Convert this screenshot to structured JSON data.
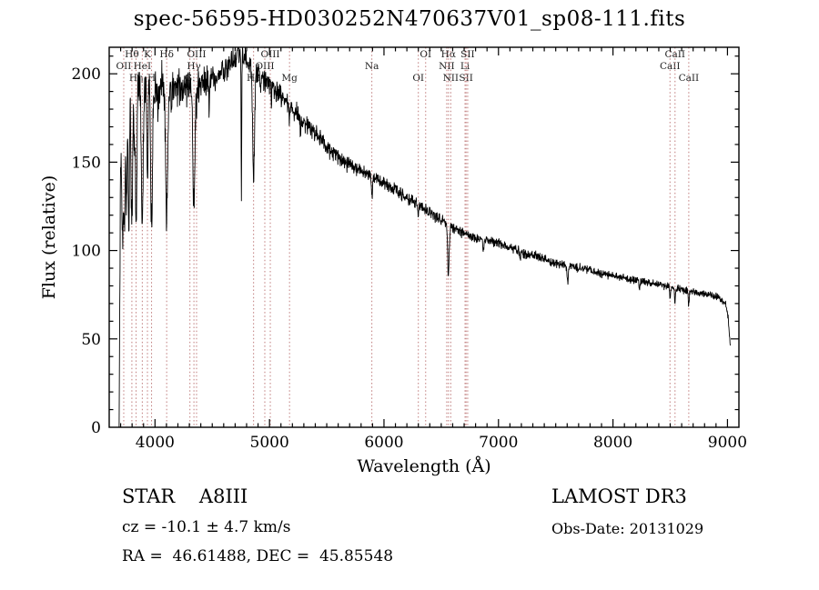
{
  "title": "spec-56595-HD030252N470637V01_sp08-111.fits",
  "chart_data": {
    "type": "line",
    "title": "spec-56595-HD030252N470637V01_sp08-111.fits",
    "xlabel": "Wavelength (Å)",
    "ylabel": "Flux (relative)",
    "xlim": [
      3600,
      9100
    ],
    "ylim": [
      0,
      215
    ],
    "xticks": [
      4000,
      5000,
      6000,
      7000,
      8000,
      9000
    ],
    "yticks": [
      0,
      50,
      100,
      150,
      200
    ],
    "x_minor_step": 100,
    "y_minor_step": 10,
    "grid": false,
    "line_color": "#000000",
    "marker_line_color": "#bf7b7b",
    "marker_label_color": "#222222",
    "series_name": "flux",
    "continuum_points": [
      [
        3687,
        0
      ],
      [
        3692,
        60
      ],
      [
        3697,
        130
      ],
      [
        3703,
        168
      ],
      [
        3710,
        182
      ],
      [
        3725,
        180
      ],
      [
        3745,
        188
      ],
      [
        3760,
        186
      ],
      [
        3780,
        188
      ],
      [
        3810,
        190
      ],
      [
        3840,
        192
      ],
      [
        3870,
        193
      ],
      [
        3905,
        194
      ],
      [
        3940,
        193
      ],
      [
        3975,
        193
      ],
      [
        4010,
        194
      ],
      [
        4060,
        195
      ],
      [
        4120,
        194
      ],
      [
        4180,
        193
      ],
      [
        4240,
        192
      ],
      [
        4300,
        193
      ],
      [
        4380,
        194
      ],
      [
        4440,
        196
      ],
      [
        4520,
        198
      ],
      [
        4600,
        202
      ],
      [
        4680,
        207
      ],
      [
        4740,
        211
      ],
      [
        4790,
        209
      ],
      [
        4840,
        205
      ],
      [
        4900,
        200
      ],
      [
        4960,
        196
      ],
      [
        5020,
        193
      ],
      [
        5080,
        189
      ],
      [
        5140,
        185
      ],
      [
        5200,
        181
      ],
      [
        5260,
        176
      ],
      [
        5320,
        171
      ],
      [
        5380,
        167
      ],
      [
        5440,
        163
      ],
      [
        5500,
        159
      ],
      [
        5560,
        155
      ],
      [
        5620,
        152
      ],
      [
        5680,
        149
      ],
      [
        5740,
        147
      ],
      [
        5800,
        145
      ],
      [
        5860,
        143
      ],
      [
        5920,
        141
      ],
      [
        5980,
        139
      ],
      [
        6040,
        136
      ],
      [
        6100,
        134
      ],
      [
        6160,
        131
      ],
      [
        6220,
        129
      ],
      [
        6280,
        127
      ],
      [
        6340,
        124
      ],
      [
        6400,
        122
      ],
      [
        6460,
        119
      ],
      [
        6520,
        117
      ],
      [
        6580,
        114
      ],
      [
        6640,
        112
      ],
      [
        6700,
        110
      ],
      [
        6760,
        108
      ],
      [
        6820,
        107
      ],
      [
        6880,
        106
      ],
      [
        6940,
        105
      ],
      [
        7000,
        104
      ],
      [
        7080,
        102
      ],
      [
        7160,
        100
      ],
      [
        7240,
        98
      ],
      [
        7320,
        97
      ],
      [
        7400,
        95
      ],
      [
        7480,
        93
      ],
      [
        7560,
        92
      ],
      [
        7640,
        91
      ],
      [
        7720,
        90
      ],
      [
        7800,
        89
      ],
      [
        7880,
        87
      ],
      [
        7960,
        86
      ],
      [
        8040,
        85
      ],
      [
        8120,
        84
      ],
      [
        8200,
        83
      ],
      [
        8280,
        82
      ],
      [
        8360,
        81
      ],
      [
        8440,
        80
      ],
      [
        8520,
        79
      ],
      [
        8600,
        78
      ],
      [
        8680,
        77
      ],
      [
        8760,
        76
      ],
      [
        8840,
        75
      ],
      [
        8900,
        74
      ],
      [
        8950,
        72
      ],
      [
        8985,
        69
      ],
      [
        9005,
        62
      ],
      [
        9020,
        50
      ],
      [
        9025,
        44
      ]
    ],
    "absorption_lines": [
      [
        3712,
        55,
        5
      ],
      [
        3722,
        58,
        5
      ],
      [
        3734,
        62,
        5
      ],
      [
        3750,
        64,
        5.5
      ],
      [
        3771,
        68,
        6
      ],
      [
        3798,
        72,
        6.5
      ],
      [
        3820,
        30,
        4
      ],
      [
        3835,
        76,
        7
      ],
      [
        3889,
        78,
        7.5
      ],
      [
        3934,
        55,
        5
      ],
      [
        3970,
        82,
        8
      ],
      [
        4026,
        18,
        4
      ],
      [
        4102,
        74,
        9
      ],
      [
        4144,
        14,
        4
      ],
      [
        4340,
        68,
        9
      ],
      [
        4363,
        10,
        4
      ],
      [
        4472,
        12,
        4
      ],
      [
        4755,
        82,
        2.6
      ],
      [
        4861,
        62,
        9
      ],
      [
        4922,
        10,
        3
      ],
      [
        5017,
        10,
        3
      ],
      [
        5175,
        11,
        5
      ],
      [
        5270,
        8,
        4
      ],
      [
        5894,
        13,
        5
      ],
      [
        6300,
        6,
        3
      ],
      [
        6563,
        28,
        7
      ],
      [
        6867,
        8,
        4
      ],
      [
        7190,
        5,
        4
      ],
      [
        7605,
        10,
        5
      ],
      [
        8230,
        5,
        4
      ],
      [
        8498,
        7,
        4
      ],
      [
        8542,
        9,
        4
      ],
      [
        8662,
        8,
        4
      ]
    ],
    "noise": {
      "seed": 20131029,
      "base": 2.3,
      "extra": 15,
      "decay": 1300
    },
    "sample": {
      "start": 3687,
      "end": 9025,
      "step": 2.4
    },
    "spectral_line_markers": [
      {
        "label": "OII",
        "wavelength": 3727,
        "row": 1
      },
      {
        "label": "Hθ",
        "wavelength": 3798,
        "row": 0
      },
      {
        "label": "Hη",
        "wavelength": 3835,
        "row": 2
      },
      {
        "label": "HeI",
        "wavelength": 3889,
        "row": 1
      },
      {
        "label": "K",
        "wavelength": 3934,
        "row": 0
      },
      {
        "label": "H",
        "wavelength": 3970,
        "row": 2
      },
      {
        "label": "Hδ",
        "wavelength": 4102,
        "row": 0
      },
      {
        "label": "G:",
        "wavelength": 4305,
        "row": 2
      },
      {
        "label": "Hγ",
        "wavelength": 4340,
        "row": 1
      },
      {
        "label": "OIII",
        "wavelength": 4363,
        "row": 0
      },
      {
        "label": "Hβ",
        "wavelength": 4861,
        "row": 2
      },
      {
        "label": "OIII",
        "wavelength": 4959,
        "row": 1
      },
      {
        "label": "OIII",
        "wavelength": 5007,
        "row": 0
      },
      {
        "label": "Mg",
        "wavelength": 5175,
        "row": 2
      },
      {
        "label": "Na",
        "wavelength": 5894,
        "row": 1
      },
      {
        "label": "OI",
        "wavelength": 6300,
        "row": 2
      },
      {
        "label": "OI",
        "wavelength": 6364,
        "row": 0
      },
      {
        "label": "NII",
        "wavelength": 6548,
        "row": 1
      },
      {
        "label": "Hα",
        "wavelength": 6563,
        "row": 0
      },
      {
        "label": "NII",
        "wavelength": 6583,
        "row": 2
      },
      {
        "label": "Li",
        "wavelength": 6708,
        "row": 1
      },
      {
        "label": "SII",
        "wavelength": 6717,
        "row": 2
      },
      {
        "label": "SII",
        "wavelength": 6731,
        "row": 0
      },
      {
        "label": "CaII",
        "wavelength": 8498,
        "row": 1
      },
      {
        "label": "CaII",
        "wavelength": 8542,
        "row": 0
      },
      {
        "label": "CaII",
        "wavelength": 8662,
        "row": 2
      }
    ]
  },
  "annotations": {
    "object_class": "STAR    A8III",
    "survey": "LAMOST DR3",
    "cz": "cz = -10.1 ± 4.7 km/s",
    "obs_date": "Obs-Date: 20131029",
    "ra_dec": "RA =  46.61488, DEC =  45.85548"
  }
}
